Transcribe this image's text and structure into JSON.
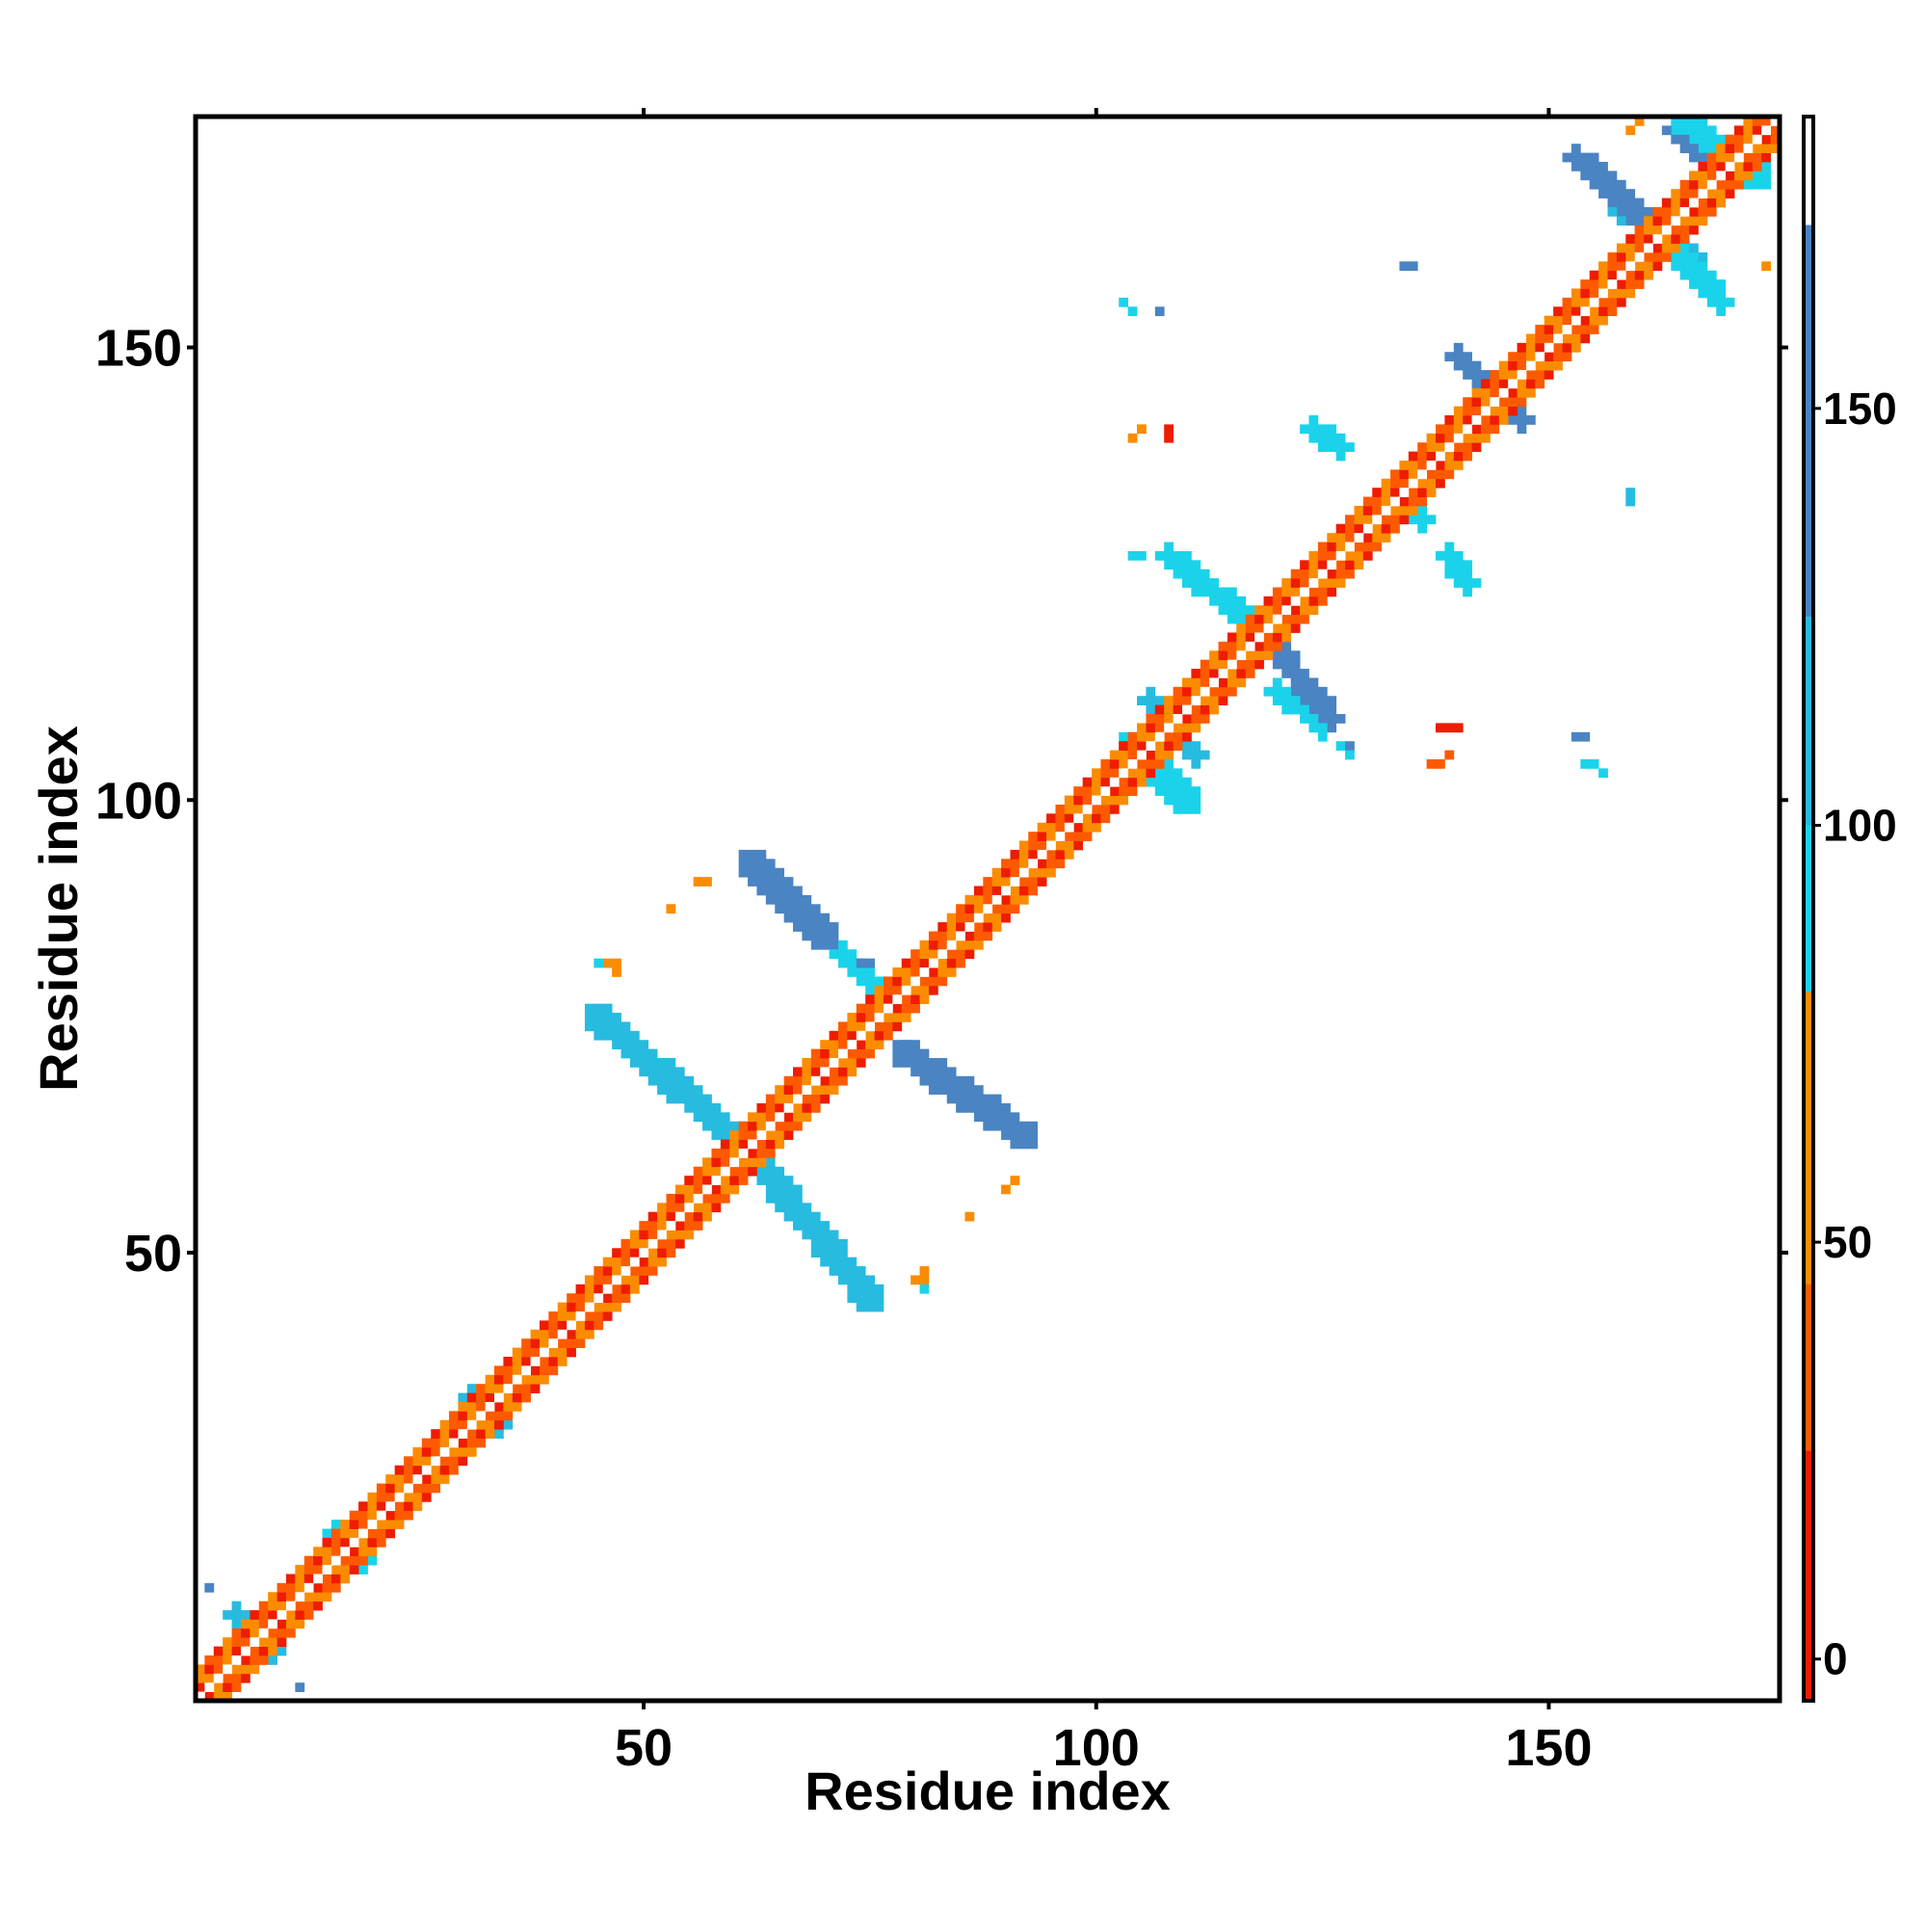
{
  "chart_data": {
    "type": "heatmap",
    "title": "",
    "xlabel": "Residue index",
    "ylabel": "Residue index",
    "xlim": [
      1,
      175
    ],
    "ylim": [
      1,
      175
    ],
    "x_ticks": [
      50,
      100,
      150
    ],
    "y_ticks": [
      50,
      100,
      150
    ],
    "x_tick_labels": [
      "50",
      "100",
      "150"
    ],
    "y_tick_labels": [
      "50",
      "100",
      "150"
    ],
    "grid": false,
    "legend": "none",
    "colorbar": {
      "position": "right",
      "range": [
        -5,
        185
      ],
      "ticks": [
        0,
        50,
        100,
        150
      ],
      "tick_labels": [
        "0",
        "50",
        "100",
        "150"
      ],
      "bands": [
        {
          "from": -5,
          "to": 25,
          "color": "#ee1c00"
        },
        {
          "from": 25,
          "to": 45,
          "color": "#fd5a00"
        },
        {
          "from": 45,
          "to": 80,
          "color": "#fb8c00"
        },
        {
          "from": 80,
          "to": 100,
          "color": "#1ad3ea"
        },
        {
          "from": 100,
          "to": 125,
          "color": "#27bbe0"
        },
        {
          "from": 125,
          "to": 172,
          "color": "#4a84c2"
        },
        {
          "from": 172,
          "to": 185,
          "color": "#ffffff"
        }
      ]
    },
    "diagonal": {
      "from": 1,
      "to": 175,
      "pattern": [
        "#ee1c00",
        "#fd5a00",
        "#fb8c00",
        "#fd5a00",
        "#ee1c00",
        "#fb8c00",
        "#fd5a00",
        "#fb8c00"
      ]
    },
    "regions": [
      {
        "x0": 5,
        "y0": 10,
        "x1": 9,
        "y1": 6,
        "w": 1.2,
        "color": "#27bbe0"
      },
      {
        "x0": 16,
        "y0": 19,
        "x1": 19,
        "y1": 16,
        "w": 1.0,
        "color": "#1ad3ea"
      },
      {
        "x0": 31,
        "y0": 34,
        "x1": 34,
        "y1": 31,
        "w": 1.0,
        "color": "#27bbe0"
      },
      {
        "x0": 45,
        "y0": 76,
        "x1": 61,
        "y1": 62,
        "w": 1.6,
        "color": "#27bbe0"
      },
      {
        "x0": 61,
        "y0": 62,
        "x1": 75,
        "y1": 45,
        "w": 1.6,
        "color": "#27bbe0"
      },
      {
        "x0": 62,
        "y0": 93,
        "x1": 70,
        "y1": 85,
        "w": 1.6,
        "color": "#4a84c2"
      },
      {
        "x0": 70,
        "y0": 85,
        "x1": 78,
        "y1": 77,
        "w": 1.0,
        "color": "#1ad3ea"
      },
      {
        "x0": 79,
        "y0": 72,
        "x1": 92,
        "y1": 63,
        "w": 1.6,
        "color": "#4a84c2"
      },
      {
        "x0": 58,
        "y0": 64,
        "x1": 61,
        "y1": 61,
        "w": 1.2,
        "color": "#1ad3ea"
      },
      {
        "x0": 104,
        "y0": 106,
        "x1": 110,
        "y1": 100,
        "w": 1.6,
        "color": "#1ad3ea"
      },
      {
        "x0": 106,
        "y0": 111,
        "x1": 111,
        "y1": 105,
        "w": 1.2,
        "color": "#27bbe0"
      },
      {
        "x0": 108,
        "y0": 127,
        "x1": 118,
        "y1": 119,
        "w": 1.4,
        "color": "#1ad3ea"
      },
      {
        "x0": 118,
        "y0": 119,
        "x1": 126,
        "y1": 109,
        "w": 1.4,
        "color": "#4a84c2"
      },
      {
        "x0": 120,
        "y0": 112,
        "x1": 125,
        "y1": 108,
        "w": 1.0,
        "color": "#1ad3ea"
      },
      {
        "x0": 124,
        "y0": 141,
        "x1": 127,
        "y1": 139,
        "w": 1.4,
        "color": "#1ad3ea"
      },
      {
        "x0": 139,
        "y0": 127,
        "x1": 141,
        "y1": 124,
        "w": 1.4,
        "color": "#1ad3ea"
      },
      {
        "x0": 140,
        "y0": 149,
        "x1": 143,
        "y1": 146,
        "w": 1.2,
        "color": "#4a84c2"
      },
      {
        "x0": 143,
        "y0": 146,
        "x1": 147,
        "y1": 142,
        "w": 1.0,
        "color": "#4a84c2"
      },
      {
        "x0": 133,
        "y0": 134,
        "x1": 136,
        "y1": 131,
        "w": 1.0,
        "color": "#1ad3ea"
      },
      {
        "x0": 153,
        "y0": 171,
        "x1": 162,
        "y1": 163,
        "w": 1.4,
        "color": "#4a84c2"
      },
      {
        "x0": 162,
        "y0": 163,
        "x1": 169,
        "y1": 155,
        "w": 1.4,
        "color": "#1ad3ea"
      },
      {
        "x0": 165,
        "y0": 175,
        "x1": 173,
        "y1": 169,
        "w": 1.6,
        "color": "#1ad3ea"
      },
      {
        "x0": 164,
        "y0": 174,
        "x1": 168,
        "y1": 170,
        "w": 1.2,
        "color": "#4a84c2"
      },
      {
        "x0": 158,
        "y0": 165,
        "x1": 166,
        "y1": 160,
        "w": 1.0,
        "color": "#27bbe0"
      }
    ],
    "points": [
      {
        "x": 2,
        "y": 13,
        "color": "#4a84c2"
      },
      {
        "x": 12,
        "y": 2,
        "color": "#4a84c2"
      },
      {
        "x": 56,
        "y": 91,
        "color": "#fb8c00"
      },
      {
        "x": 57,
        "y": 91,
        "color": "#fb8c00"
      },
      {
        "x": 53,
        "y": 88,
        "color": "#fb8c00"
      },
      {
        "x": 46,
        "y": 82,
        "color": "#fb8c00"
      },
      {
        "x": 47,
        "y": 82,
        "color": "#fb8c00"
      },
      {
        "x": 45,
        "y": 82,
        "color": "#1ad3ea"
      },
      {
        "x": 47,
        "y": 81,
        "color": "#fb8c00"
      },
      {
        "x": 74,
        "y": 82,
        "color": "#4a84c2"
      },
      {
        "x": 75,
        "y": 82,
        "color": "#4a84c2"
      },
      {
        "x": 79,
        "y": 73,
        "color": "#4a84c2"
      },
      {
        "x": 81,
        "y": 48,
        "color": "#fb8c00"
      },
      {
        "x": 81,
        "y": 47,
        "color": "#fb8c00"
      },
      {
        "x": 80,
        "y": 47,
        "color": "#fb8c00"
      },
      {
        "x": 81,
        "y": 46,
        "color": "#1ad3ea"
      },
      {
        "x": 86,
        "y": 54,
        "color": "#fb8c00"
      },
      {
        "x": 90,
        "y": 57,
        "color": "#fb8c00"
      },
      {
        "x": 91,
        "y": 58,
        "color": "#fb8c00"
      },
      {
        "x": 104,
        "y": 140,
        "color": "#fb8c00"
      },
      {
        "x": 105,
        "y": 141,
        "color": "#fb8c00"
      },
      {
        "x": 108,
        "y": 141,
        "color": "#ee1c00"
      },
      {
        "x": 108,
        "y": 140,
        "color": "#ee1c00"
      },
      {
        "x": 103,
        "y": 155,
        "color": "#1ad3ea"
      },
      {
        "x": 104,
        "y": 154,
        "color": "#1ad3ea"
      },
      {
        "x": 107,
        "y": 154,
        "color": "#4a84c2"
      },
      {
        "x": 104,
        "y": 127,
        "color": "#1ad3ea"
      },
      {
        "x": 105,
        "y": 127,
        "color": "#1ad3ea"
      },
      {
        "x": 134,
        "y": 159,
        "color": "#4a84c2"
      },
      {
        "x": 135,
        "y": 159,
        "color": "#4a84c2"
      },
      {
        "x": 138,
        "y": 108,
        "color": "#ee1c00"
      },
      {
        "x": 139,
        "y": 108,
        "color": "#ee1c00"
      },
      {
        "x": 140,
        "y": 108,
        "color": "#ee1c00"
      },
      {
        "x": 137,
        "y": 104,
        "color": "#fd5a00"
      },
      {
        "x": 138,
        "y": 104,
        "color": "#fd5a00"
      },
      {
        "x": 139,
        "y": 105,
        "color": "#fd5a00"
      },
      {
        "x": 127,
        "y": 106,
        "color": "#1ad3ea"
      },
      {
        "x": 128,
        "y": 106,
        "color": "#4a84c2"
      },
      {
        "x": 128,
        "y": 105,
        "color": "#1ad3ea"
      },
      {
        "x": 153,
        "y": 107,
        "color": "#4a84c2"
      },
      {
        "x": 154,
        "y": 107,
        "color": "#4a84c2"
      },
      {
        "x": 154,
        "y": 104,
        "color": "#1ad3ea"
      },
      {
        "x": 155,
        "y": 104,
        "color": "#1ad3ea"
      },
      {
        "x": 156,
        "y": 103,
        "color": "#1ad3ea"
      },
      {
        "x": 159,
        "y": 134,
        "color": "#27bbe0"
      },
      {
        "x": 159,
        "y": 133,
        "color": "#27bbe0"
      },
      {
        "x": 159,
        "y": 174,
        "color": "#fb8c00"
      },
      {
        "x": 174,
        "y": 159,
        "color": "#fb8c00"
      },
      {
        "x": 160,
        "y": 175,
        "color": "#fb8c00"
      }
    ]
  }
}
